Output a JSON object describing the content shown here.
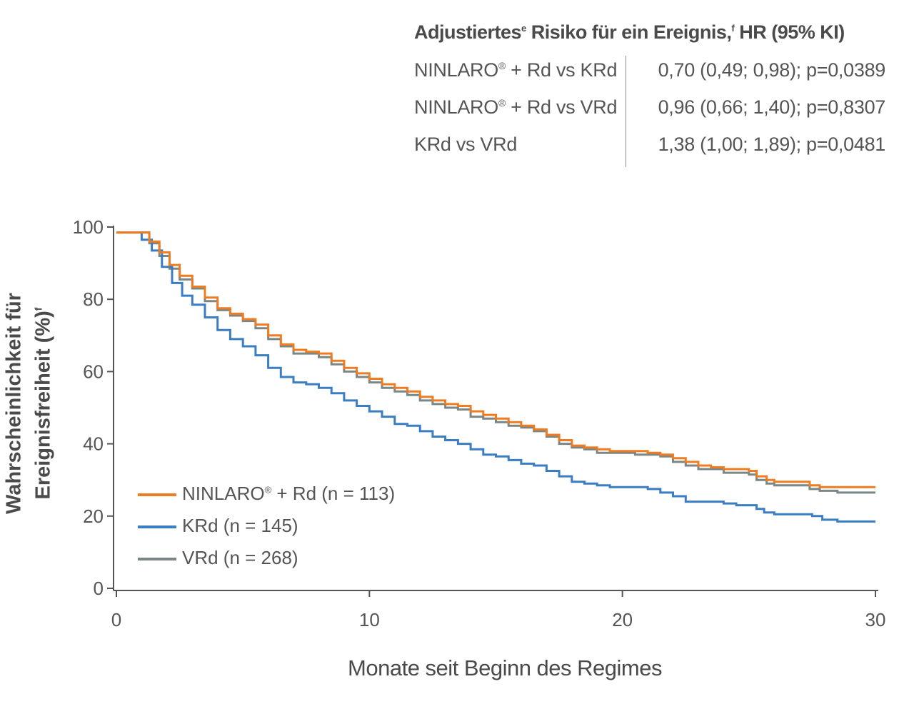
{
  "hr_table": {
    "title": "Adjustiertes",
    "title_sup1": "e",
    "title_mid": " Risiko für ein Ereignis,",
    "title_sup2": "f",
    "title_end": " HR (95% KI)",
    "rows": [
      {
        "label_a": "NINLARO",
        "label_sup": "®",
        "label_b": " + Rd vs KRd",
        "value": "0,70 (0,49; 0,98); p=0,0389"
      },
      {
        "label_a": "NINLARO",
        "label_sup": "®",
        "label_b": " + Rd vs VRd",
        "value": "0,96 (0,66; 1,40); p=0,8307"
      },
      {
        "label_a": "KRd vs VRd",
        "label_sup": "",
        "label_b": "",
        "value": "1,38 (1,00; 1,89); p=0,0481"
      }
    ]
  },
  "chart_data": {
    "type": "line",
    "xlabel": "Monate seit Beginn des Regimes",
    "ylabel_line1": "Wahrscheinlichkeit für",
    "ylabel_line2": "Ereignisfreiheit (%)",
    "ylabel_sup": "f",
    "xlim": [
      0,
      30
    ],
    "ylim": [
      0,
      100
    ],
    "x_ticks": [
      0,
      10,
      20,
      30
    ],
    "y_ticks": [
      0,
      20,
      40,
      60,
      80,
      100
    ],
    "grid": false,
    "legend_position": "bottom-left",
    "series": [
      {
        "name": "NINLARO® + Rd (n = 113)",
        "legend_a": "NINLARO",
        "legend_sup": "®",
        "legend_b": " + Rd (n = 113)",
        "color": "#f07c22",
        "x": [
          0,
          0.9,
          1.3,
          1.7,
          2.1,
          2.5,
          3.0,
          3.5,
          4.0,
          4.5,
          5.0,
          5.5,
          6.0,
          6.5,
          7.0,
          7.5,
          8.0,
          8.5,
          9.0,
          9.5,
          10.0,
          10.5,
          11.0,
          11.5,
          12.0,
          12.5,
          13.0,
          13.5,
          14.0,
          14.5,
          15.0,
          15.5,
          16.0,
          16.5,
          17.0,
          17.5,
          18.0,
          18.5,
          19.0,
          19.5,
          20.0,
          20.5,
          21.0,
          21.5,
          22.0,
          22.5,
          23.0,
          23.5,
          24.0,
          24.5,
          25.0,
          25.3,
          25.7,
          26.0,
          27.0,
          27.4,
          27.8,
          28.5,
          30.0
        ],
        "y": [
          98.5,
          98.5,
          96,
          93,
          89.5,
          86.5,
          83.5,
          80.5,
          77.5,
          76,
          74.5,
          73,
          70,
          67.5,
          66,
          65.5,
          65,
          63,
          61,
          59.5,
          58,
          56.5,
          55.5,
          54.5,
          53,
          52,
          51,
          50.5,
          49,
          48,
          47,
          46,
          45,
          44,
          42.5,
          41,
          39.5,
          39,
          38.5,
          38,
          38,
          38,
          37.5,
          37,
          36,
          35,
          34,
          33.5,
          33,
          33,
          32.5,
          31,
          30,
          29.5,
          29.5,
          28.5,
          28,
          28,
          28
        ]
      },
      {
        "name": "KRd (n = 145)",
        "legend_a": "KRd (n = 145)",
        "legend_sup": "",
        "legend_b": "",
        "color": "#3a7dc2",
        "x": [
          0,
          0.7,
          1.0,
          1.4,
          1.8,
          2.2,
          2.6,
          3.0,
          3.5,
          4.0,
          4.5,
          5.0,
          5.5,
          6.0,
          6.5,
          7.0,
          7.5,
          8.0,
          8.5,
          9.0,
          9.5,
          10.0,
          10.5,
          11.0,
          11.5,
          12.0,
          12.5,
          13.0,
          13.5,
          14.0,
          14.5,
          15.0,
          15.5,
          16.0,
          16.5,
          17.0,
          17.5,
          18.0,
          18.5,
          19.0,
          19.5,
          20.0,
          20.5,
          21.0,
          21.5,
          22.0,
          22.5,
          23.0,
          23.5,
          24.0,
          24.5,
          25.0,
          25.3,
          25.6,
          26.0,
          27.0,
          27.5,
          27.9,
          28.5,
          30.0
        ],
        "y": [
          98.5,
          98.5,
          96.5,
          93.5,
          89,
          84.5,
          81,
          78.5,
          75,
          71.5,
          69,
          67,
          64.5,
          61,
          58.5,
          57,
          56.5,
          55.5,
          54,
          52,
          50.5,
          49,
          47.5,
          45.5,
          45,
          43.5,
          42,
          41,
          40,
          38.5,
          37,
          36.5,
          35.5,
          34.5,
          34,
          32.5,
          31,
          29.5,
          29,
          28.5,
          28,
          28,
          28,
          27.5,
          26.5,
          25.5,
          24,
          24,
          24,
          23.5,
          23,
          23,
          22,
          21,
          20.5,
          20.5,
          20,
          19,
          18.5,
          18.5
        ]
      },
      {
        "name": "VRd (n = 268)",
        "legend_a": "VRd (n = 268)",
        "legend_sup": "",
        "legend_b": "",
        "color": "#7a8786",
        "x": [
          0,
          0.9,
          1.3,
          1.7,
          2.1,
          2.5,
          3.0,
          3.5,
          4.0,
          4.5,
          5.0,
          5.5,
          6.0,
          6.5,
          7.0,
          7.5,
          8.0,
          8.5,
          9.0,
          9.5,
          10.0,
          10.5,
          11.0,
          11.5,
          12.0,
          12.5,
          13.0,
          13.5,
          14.0,
          14.5,
          15.0,
          15.5,
          16.0,
          16.5,
          17.0,
          17.5,
          18.0,
          18.5,
          19.0,
          19.5,
          20.0,
          20.5,
          21.0,
          21.5,
          22.0,
          22.5,
          23.0,
          23.5,
          24.0,
          24.5,
          25.0,
          25.3,
          25.7,
          26.0,
          27.0,
          27.4,
          27.8,
          28.5,
          30.0
        ],
        "y": [
          98.5,
          98.5,
          95.5,
          92,
          88.5,
          85.5,
          83,
          79.5,
          77,
          75.5,
          74,
          72,
          69,
          67,
          65,
          65,
          64,
          62,
          60,
          58.5,
          57,
          55.5,
          54.5,
          53.5,
          52,
          51,
          50,
          49.5,
          47.5,
          47,
          46,
          45,
          44.5,
          43.5,
          42,
          40,
          39,
          38.5,
          37.5,
          37.5,
          37.5,
          37,
          37,
          36.5,
          35,
          34,
          33,
          33,
          32,
          32,
          31.5,
          30,
          29,
          28.5,
          28.5,
          27.5,
          27,
          26.5,
          26.5
        ]
      }
    ]
  }
}
